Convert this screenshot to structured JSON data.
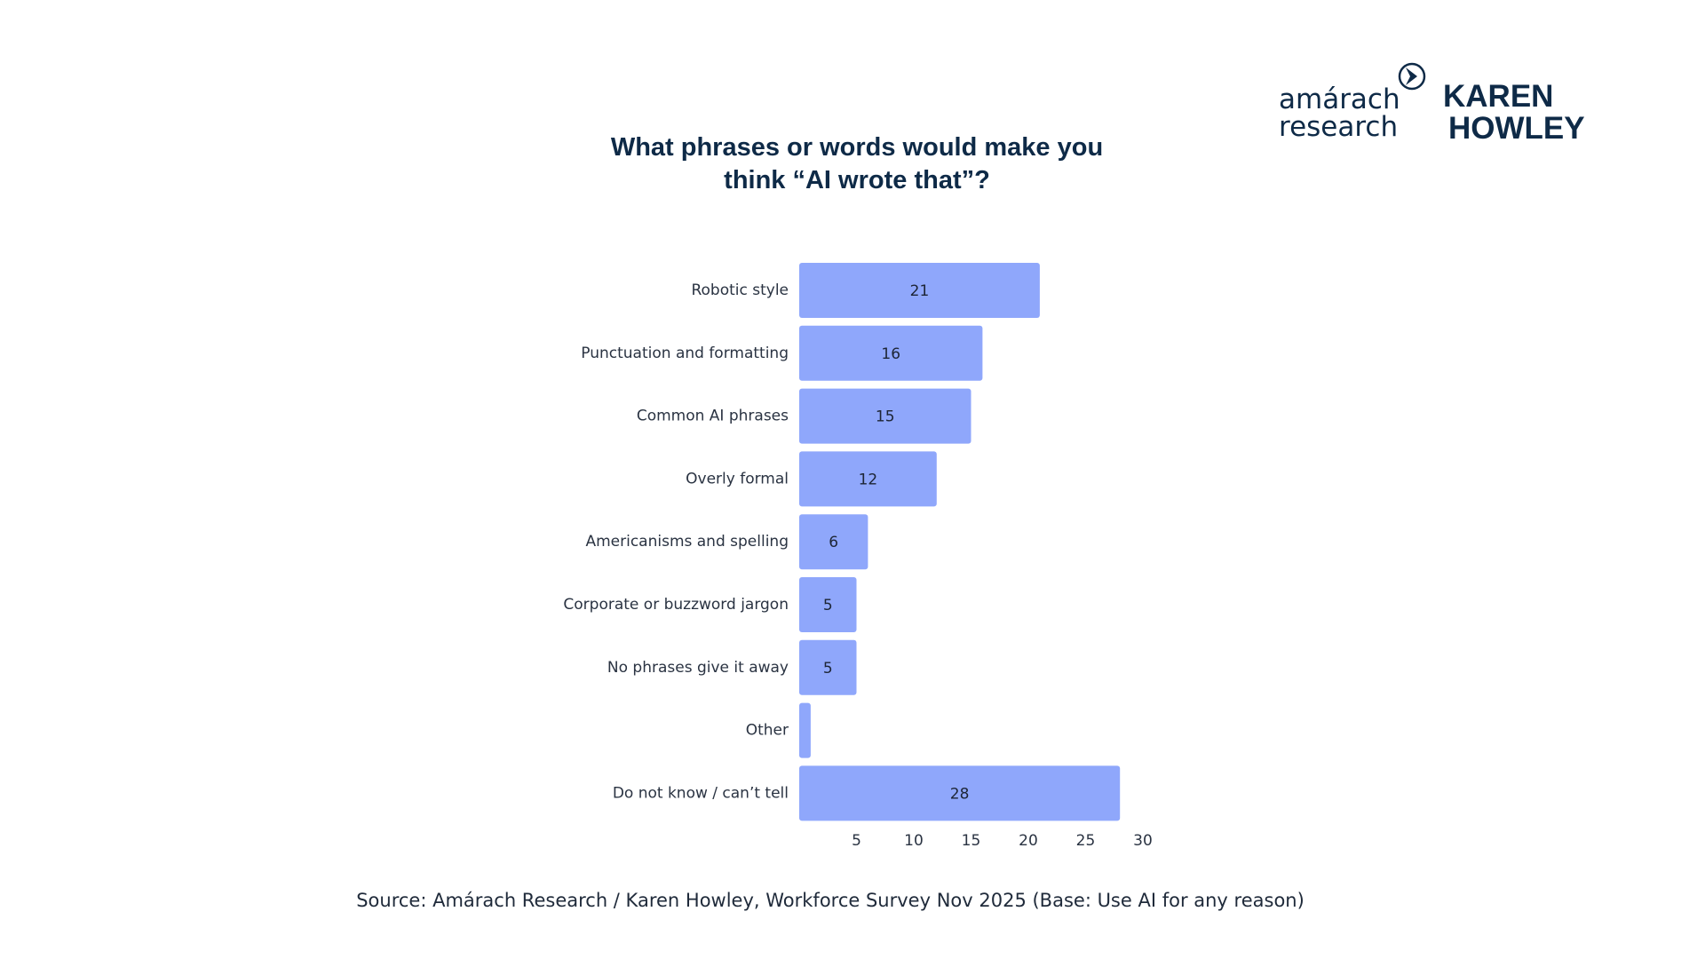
{
  "branding": {
    "amarach_line1": "amárach",
    "amarach_line2": "research",
    "karen_line1": "KAREN",
    "karen_line2": "HOWLEY",
    "brand_color": "#0e2a47"
  },
  "source_text": "Source: Amárach Research / Karen Howley, Workforce Survey Nov 2025 (Base: Use AI for any reason)",
  "chart_data": {
    "type": "bar",
    "orientation": "horizontal",
    "title_line1": "What phrases or words would make you",
    "title_line2": "think “AI wrote that”?",
    "categories": [
      "Robotic style",
      "Punctuation and formatting",
      "Common AI phrases",
      "Overly formal",
      "Americanisms and spelling",
      "Corporate or buzzword jargon",
      "No phrases give it away",
      "Other",
      "Do not know / can’t tell"
    ],
    "values": [
      21,
      16,
      15,
      12,
      6,
      5,
      5,
      1,
      28
    ],
    "value_labels": [
      "21",
      "16",
      "15",
      "12",
      "6",
      "5",
      "5",
      "",
      "28"
    ],
    "xlim": [
      0,
      30
    ],
    "xticks": [
      5,
      10,
      15,
      20,
      25,
      30
    ],
    "grid": false,
    "bar_color": "#8fa7fb",
    "xlabel": "",
    "ylabel": ""
  }
}
